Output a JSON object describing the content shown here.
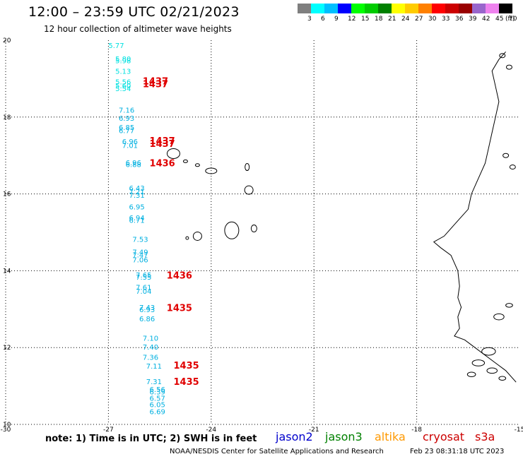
{
  "header": {
    "title": "12:00 – 23:59 UTC 02/21/2023",
    "subtitle": "12 hour collection of altimeter wave heights"
  },
  "scale": {
    "unit": "(ft)",
    "labels": [
      "3",
      "6",
      "9",
      "12",
      "15",
      "18",
      "21",
      "24",
      "27",
      "30",
      "33",
      "36",
      "39",
      "42",
      "45",
      "70"
    ],
    "colors": [
      "#7f7f7f",
      "#00ffff",
      "#00bfff",
      "#0000ff",
      "#00ff00",
      "#00cc00",
      "#008000",
      "#ffff00",
      "#ffcc00",
      "#ff8000",
      "#ff0000",
      "#cc0000",
      "#990000",
      "#9966cc",
      "#ee82ee",
      "#000000"
    ]
  },
  "map": {
    "x_ticks": [
      "-30",
      "-27",
      "-24",
      "-21",
      "-18",
      "-15"
    ],
    "y_ticks": [
      "20",
      "18",
      "16",
      "14",
      "12",
      "10"
    ],
    "obs_color": "#00b0e0",
    "time_color": "#e00000",
    "coast_color": "#000000",
    "grid_color": "#000000"
  },
  "observations": [
    {
      "lon": -27.0,
      "lat": 19.8,
      "swh": "5.77",
      "color": "#00e0e0"
    },
    {
      "lon": -26.8,
      "lat": 19.45,
      "swh": "5.80",
      "color": "#00e0e0"
    },
    {
      "lon": -26.8,
      "lat": 19.4,
      "swh": "5.98",
      "color": "#00e0e0"
    },
    {
      "lon": -26.8,
      "lat": 19.13,
      "swh": "5.13",
      "color": "#00e0e0"
    },
    {
      "lon": -26.8,
      "lat": 18.85,
      "swh": "5.56",
      "color": "#00e0e0"
    },
    {
      "lon": -26.8,
      "lat": 18.75,
      "swh": "5.60",
      "color": "#00e0e0"
    },
    {
      "lon": -26.8,
      "lat": 18.68,
      "swh": "5.54",
      "color": "#00e0e0"
    },
    {
      "lon": -26.7,
      "lat": 18.12,
      "swh": "7.16",
      "color": "#00b0e0"
    },
    {
      "lon": -26.7,
      "lat": 17.9,
      "swh": "6.93",
      "color": "#00b0e0"
    },
    {
      "lon": -26.7,
      "lat": 17.67,
      "swh": "6.85",
      "color": "#00b0e0"
    },
    {
      "lon": -26.7,
      "lat": 17.58,
      "swh": "6.77",
      "color": "#00b0e0"
    },
    {
      "lon": -26.6,
      "lat": 17.3,
      "swh": "6.96",
      "color": "#00b0e0"
    },
    {
      "lon": -26.6,
      "lat": 17.2,
      "swh": "7.01",
      "color": "#00b0e0"
    },
    {
      "lon": -26.5,
      "lat": 16.75,
      "swh": "6.96",
      "color": "#00b0e0"
    },
    {
      "lon": -26.5,
      "lat": 16.7,
      "swh": "6.88",
      "color": "#00b0e0"
    },
    {
      "lon": -26.4,
      "lat": 16.08,
      "swh": "6.43",
      "color": "#00b0e0"
    },
    {
      "lon": -26.4,
      "lat": 15.99,
      "swh": "7.21",
      "color": "#00b0e0"
    },
    {
      "lon": -26.4,
      "lat": 15.9,
      "swh": "7.31",
      "color": "#00b0e0"
    },
    {
      "lon": -26.4,
      "lat": 15.6,
      "swh": "6.95",
      "color": "#00b0e0"
    },
    {
      "lon": -26.4,
      "lat": 15.31,
      "swh": "6.94",
      "color": "#00b0e0"
    },
    {
      "lon": -26.4,
      "lat": 15.25,
      "swh": "6.71",
      "color": "#00b0e0"
    },
    {
      "lon": -26.3,
      "lat": 14.75,
      "swh": "7.53",
      "color": "#00b0e0"
    },
    {
      "lon": -26.3,
      "lat": 14.42,
      "swh": "7.49",
      "color": "#00b0e0"
    },
    {
      "lon": -26.3,
      "lat": 14.35,
      "swh": "7.47",
      "color": "#00b0e0"
    },
    {
      "lon": -26.3,
      "lat": 14.22,
      "swh": "7.06",
      "color": "#00b0e0"
    },
    {
      "lon": -26.2,
      "lat": 13.82,
      "swh": "7.65",
      "color": "#00b0e0"
    },
    {
      "lon": -26.2,
      "lat": 13.77,
      "swh": "7.55",
      "color": "#00b0e0"
    },
    {
      "lon": -26.2,
      "lat": 13.5,
      "swh": "7.61",
      "color": "#00b0e0"
    },
    {
      "lon": -26.2,
      "lat": 13.4,
      "swh": "7.04",
      "color": "#00b0e0"
    },
    {
      "lon": -26.1,
      "lat": 12.98,
      "swh": "7.43",
      "color": "#00b0e0"
    },
    {
      "lon": -26.1,
      "lat": 12.92,
      "swh": "6.93",
      "color": "#00b0e0"
    },
    {
      "lon": -26.1,
      "lat": 12.68,
      "swh": "6.86",
      "color": "#00b0e0"
    },
    {
      "lon": -26.0,
      "lat": 12.18,
      "swh": "7.10",
      "color": "#00b0e0"
    },
    {
      "lon": -26.0,
      "lat": 11.95,
      "swh": "7.40",
      "color": "#00b0e0"
    },
    {
      "lon": -26.0,
      "lat": 11.68,
      "swh": "7.36",
      "color": "#00b0e0"
    },
    {
      "lon": -25.9,
      "lat": 11.45,
      "swh": "7.11",
      "color": "#00b0e0"
    },
    {
      "lon": -25.9,
      "lat": 11.05,
      "swh": "7.31",
      "color": "#00b0e0"
    },
    {
      "lon": -25.8,
      "lat": 10.85,
      "swh": "6.56",
      "color": "#00b0e0"
    },
    {
      "lon": -25.8,
      "lat": 10.78,
      "swh": "6.39",
      "color": "#00b0e0"
    },
    {
      "lon": -25.8,
      "lat": 10.62,
      "swh": "6.57",
      "color": "#00b0e0"
    },
    {
      "lon": -25.8,
      "lat": 10.45,
      "swh": "6.05",
      "color": "#00b0e0"
    },
    {
      "lon": -25.8,
      "lat": 10.27,
      "swh": "6.69",
      "color": "#00b0e0"
    }
  ],
  "time_labels": [
    {
      "lon": -26.0,
      "lat": 18.85,
      "text": "1437"
    },
    {
      "lon": -26.0,
      "lat": 18.78,
      "text": "1437"
    },
    {
      "lon": -25.8,
      "lat": 17.3,
      "text": "1437"
    },
    {
      "lon": -25.8,
      "lat": 17.22,
      "text": "1437"
    },
    {
      "lon": -25.8,
      "lat": 16.72,
      "text": "1436"
    },
    {
      "lon": -25.3,
      "lat": 13.8,
      "text": "1436"
    },
    {
      "lon": -25.3,
      "lat": 12.95,
      "text": "1435"
    },
    {
      "lon": -25.1,
      "lat": 11.45,
      "text": "1435"
    },
    {
      "lon": -25.1,
      "lat": 11.03,
      "text": "1435"
    }
  ],
  "footer": {
    "note": "note: 1) Time is in UTC; 2) SWH is in feet",
    "satellites": [
      {
        "name": "jason2",
        "color": "#0000cc"
      },
      {
        "name": "jason3",
        "color": "#008000"
      },
      {
        "name": "altika",
        "color": "#ff9900"
      },
      {
        "name": "cryosat",
        "color": "#cc0000"
      },
      {
        "name": "s3a",
        "color": "#cc0000"
      }
    ],
    "credit": "NOAA/NESDIS Center for Satellite Applications and Research",
    "timestamp": "Feb 23 08:31:18 UTC 2023"
  }
}
